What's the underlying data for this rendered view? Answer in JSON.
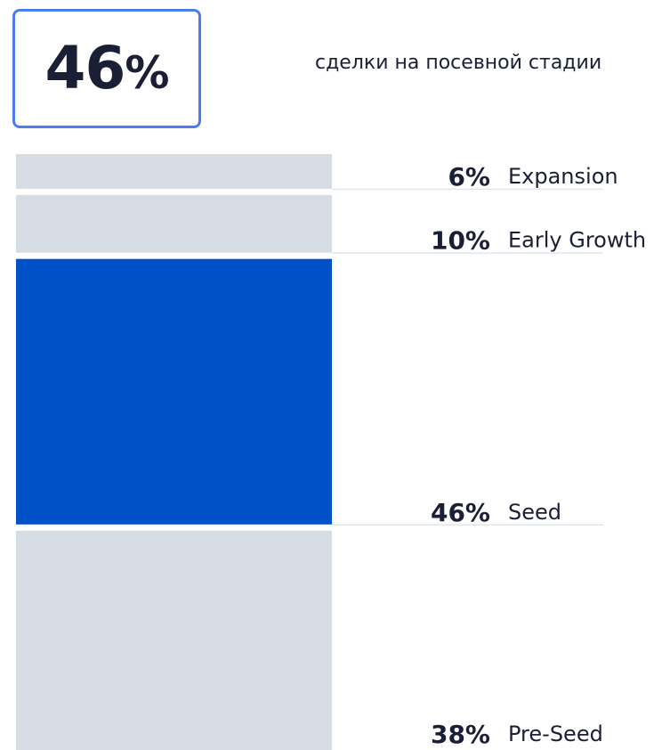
{
  "highlight": {
    "value": "46",
    "unit": "%",
    "caption": "сделки на посевной стадии"
  },
  "colors": {
    "highlight": "#0050c8",
    "muted": "#d6dce4",
    "border": "#4a7df0",
    "text": "#1a1f36",
    "rule": "#e2e6ec"
  },
  "chart_data": {
    "type": "bar",
    "orientation": "stacked-vertical",
    "categories": [
      "Expansion",
      "Early Growth",
      "Seed",
      "Pre-Seed"
    ],
    "values": [
      6,
      10,
      46,
      38
    ],
    "value_labels": [
      "6%",
      "10%",
      "46%",
      "38%"
    ],
    "highlighted": "Seed",
    "unit": "%"
  }
}
